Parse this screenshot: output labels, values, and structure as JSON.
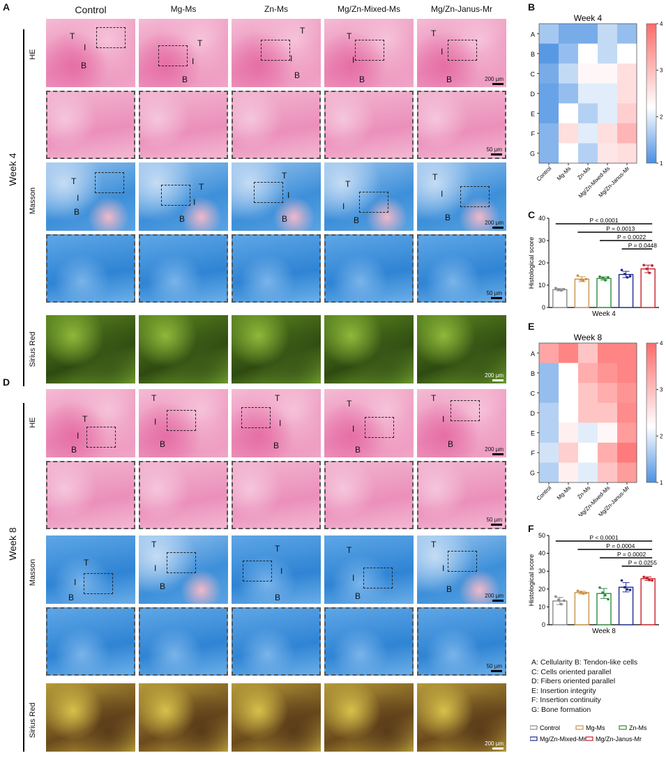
{
  "panels": {
    "A": "A",
    "B": "B",
    "C": "C",
    "D": "D",
    "E": "E",
    "F": "F"
  },
  "groups": [
    "Control",
    "Mg-Ms",
    "Zn-Ms",
    "Mg/Zn-Mixed-Ms",
    "Mg/Zn-Janus-Mr"
  ],
  "weeks": {
    "w4": "Week 4",
    "w8": "Week 8"
  },
  "stains": {
    "he": "HE",
    "masson": "Masson",
    "sirius": "Sirius Red"
  },
  "region_labels": {
    "t": "T",
    "i": "I",
    "b": "B"
  },
  "scalebars": {
    "s200": "200 µm",
    "s50": "50 µm"
  },
  "colors": {
    "control": "#8a8a8a",
    "mg": "#c9924a",
    "zn": "#2e8b3e",
    "mixed": "#1e2a8f",
    "janus": "#c8202c",
    "cold": "#4a90e2",
    "mid": "#ffffff",
    "hot": "#ff6b6b"
  },
  "chart_data": [
    {
      "type": "heatmap",
      "title": "Week 4",
      "x": [
        "Control",
        "Mg-Ms",
        "Zn-Ms",
        "Mg/Zn-Mixed-Ms",
        "Mg/Zn-Janus-Mr"
      ],
      "y": [
        "A",
        "B",
        "C",
        "D",
        "E",
        "F",
        "G"
      ],
      "values": [
        [
          1.6,
          1.3,
          1.3,
          1.8,
          1.5
        ],
        [
          1.1,
          1.5,
          2.2,
          1.8,
          2.2
        ],
        [
          1.3,
          1.8,
          2.3,
          2.3,
          2.6
        ],
        [
          1.2,
          1.5,
          2.0,
          2.0,
          2.6
        ],
        [
          1.2,
          2.2,
          1.7,
          2.0,
          2.8
        ],
        [
          1.4,
          2.6,
          2.0,
          2.6,
          3.1
        ],
        [
          1.4,
          2.2,
          1.7,
          2.5,
          2.6
        ]
      ],
      "colorbar": {
        "min": 1,
        "max": 4,
        "ticks": [
          1,
          2,
          3,
          4
        ]
      }
    },
    {
      "type": "bar",
      "title": "",
      "xlabel": "Week 4",
      "ylabel": "Histological score",
      "ylim": [
        0,
        40
      ],
      "yticks": [
        0,
        10,
        20,
        30,
        40
      ],
      "categories": [
        "Control",
        "Mg-Ms",
        "Zn-Ms",
        "Mg/Zn-Mixed-Mr",
        "Mg/Zn-Janus-Mr"
      ],
      "values": [
        8,
        12.7,
        13,
        14.8,
        17.3
      ],
      "points": [
        [
          8.7,
          8,
          7.6,
          8.2
        ],
        [
          14.3,
          12.5,
          12,
          12.7
        ],
        [
          13.8,
          13.2,
          12.2,
          13.5
        ],
        [
          16.8,
          15,
          13.5,
          14
        ],
        [
          19,
          17.3,
          15.5,
          18.8
        ]
      ],
      "errors": [
        0.5,
        1.1,
        0.7,
        1.4,
        1.7
      ],
      "comparisons": [
        {
          "label": "P < 0.0001",
          "from": 0,
          "to": 4
        },
        {
          "label": "P = 0.0013",
          "from": 1,
          "to": 4
        },
        {
          "label": "P = 0.0022",
          "from": 2,
          "to": 4
        },
        {
          "label": "P = 0.0448",
          "from": 3,
          "to": 4
        }
      ]
    },
    {
      "type": "heatmap",
      "title": "Week 8",
      "x": [
        "Control",
        "Mg-Ms",
        "Zn-Ms",
        "Mg/Zn-Mixed-Ms",
        "Mg/Zn-Janus-Mr"
      ],
      "y": [
        "A",
        "B",
        "C",
        "D",
        "E",
        "F",
        "G"
      ],
      "values": [
        [
          3.3,
          3.7,
          2.9,
          3.7,
          3.7
        ],
        [
          1.5,
          2.2,
          3.2,
          3.5,
          3.7
        ],
        [
          1.5,
          2.2,
          2.9,
          3.2,
          3.5
        ],
        [
          1.7,
          2.2,
          2.9,
          2.9,
          3.6
        ],
        [
          1.7,
          2.4,
          2.0,
          2.3,
          3.4
        ],
        [
          1.9,
          2.8,
          2.2,
          3.2,
          3.8
        ],
        [
          1.7,
          2.4,
          2.0,
          2.9,
          3.4
        ]
      ],
      "colorbar": {
        "min": 1,
        "max": 4,
        "ticks": [
          1,
          2,
          3,
          4
        ]
      }
    },
    {
      "type": "bar",
      "title": "",
      "xlabel": "Week 8",
      "ylabel": "Histological score",
      "ylim": [
        0,
        50
      ],
      "yticks": [
        0,
        10,
        20,
        30,
        40,
        50
      ],
      "categories": [
        "Control",
        "Mg-Ms",
        "Zn-Ms",
        "Mg/Zn-Mixed-Mr",
        "Mg/Zn-Janus-Mr"
      ],
      "values": [
        13.3,
        18,
        17.5,
        21,
        25.8
      ],
      "points": [
        [
          15.8,
          14,
          11.5,
          13.5
        ],
        [
          19,
          18.2,
          17.5,
          17.8
        ],
        [
          20.8,
          18,
          16.5,
          14.3
        ],
        [
          24.8,
          21,
          19.8,
          19.5
        ],
        [
          26.8,
          26,
          25,
          24.8
        ]
      ],
      "errors": [
        2,
        0.8,
        2.8,
        2.6,
        1
      ],
      "comparisons": [
        {
          "label": "P < 0.0001",
          "from": 0,
          "to": 4
        },
        {
          "label": "P = 0.0004",
          "from": 1,
          "to": 4
        },
        {
          "label": "P = 0.0002",
          "from": 2,
          "to": 4
        },
        {
          "label": "P = 0.0255",
          "from": 3,
          "to": 4
        }
      ]
    }
  ],
  "key": [
    "A: Cellularity B: Tendon-like cells",
    "C: Cells oriented parallel",
    "D: Fibers oriented parallel",
    "E: Insertion integrity",
    "F: Insertion continuity",
    "G: Bone formation"
  ],
  "legend": [
    "Control",
    "Mg-Ms",
    "Zn-Ms",
    "Mg/Zn-Mixed-Mr",
    "Mg/Zn-Janus-Mr"
  ]
}
